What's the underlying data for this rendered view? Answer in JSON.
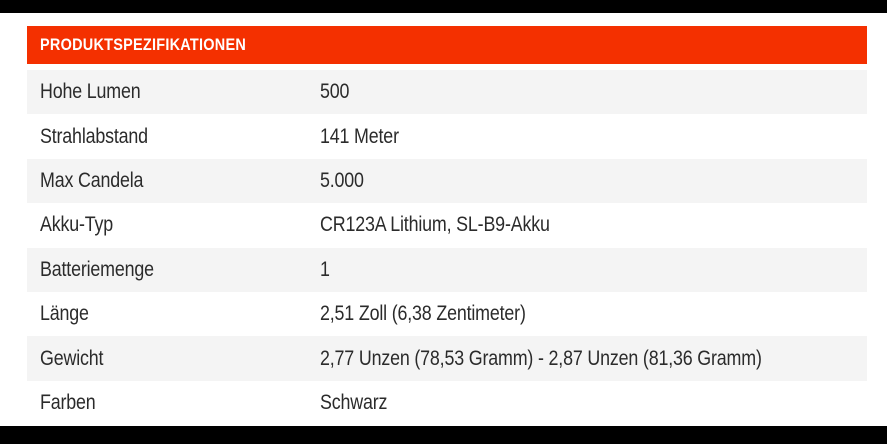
{
  "header": {
    "title": "PRODUKTSPEZIFIKATIONEN"
  },
  "colors": {
    "header_bg": "#f43000",
    "header_text": "#ffffff",
    "row_alt_bg": "#f4f4f4",
    "row_bg": "#ffffff",
    "text": "#2b2b2b",
    "frame": "#000000"
  },
  "spec_table": {
    "rows": [
      {
        "label": "Hohe Lumen",
        "value": "500"
      },
      {
        "label": "Strahlabstand",
        "value": "141 Meter"
      },
      {
        "label": "Max Candela",
        "value": "5.000"
      },
      {
        "label": "Akku-Typ",
        "value": "CR123A Lithium, SL-B9-Akku"
      },
      {
        "label": "Batteriemenge",
        "value": "1"
      },
      {
        "label": "Länge",
        "value": "2,51 Zoll (6,38 Zentimeter)"
      },
      {
        "label": "Gewicht",
        "value": "2,77 Unzen (78,53 Gramm) - 2,87 Unzen (81,36 Gramm)"
      },
      {
        "label": "Farben",
        "value": "Schwarz"
      }
    ]
  }
}
